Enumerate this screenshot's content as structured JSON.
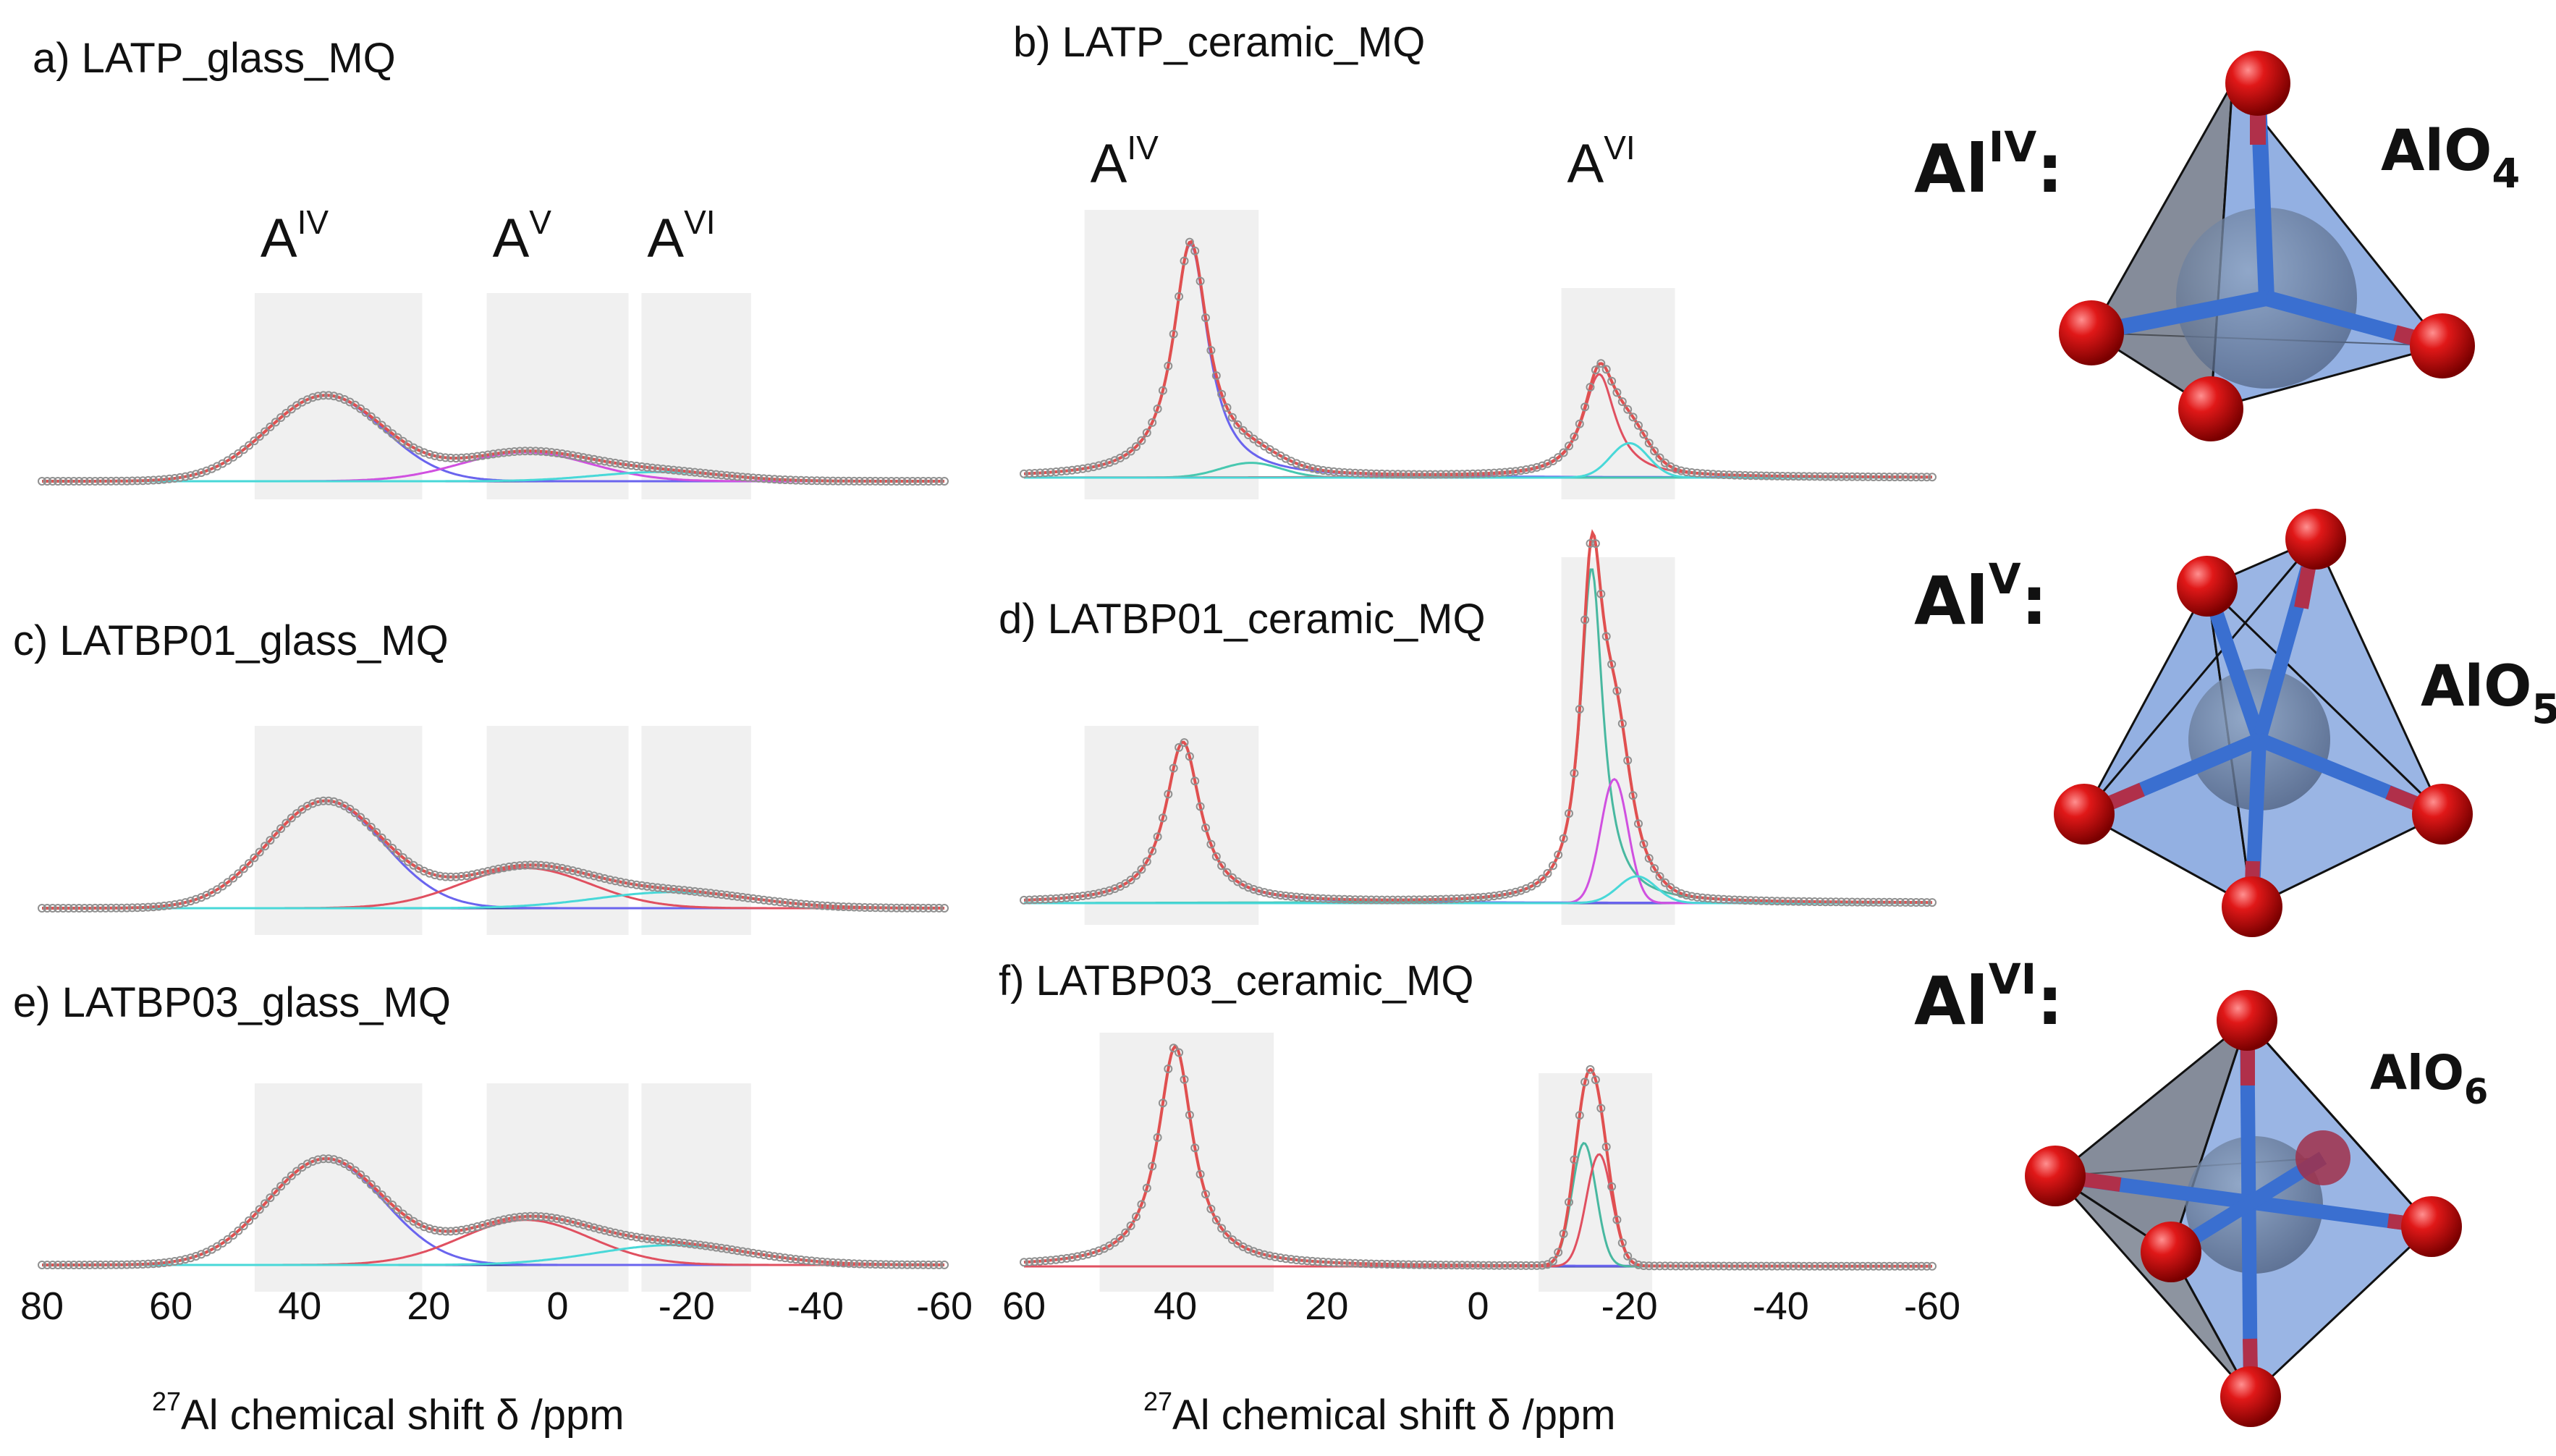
{
  "chart_data": [
    {
      "type": "line",
      "id": "a",
      "title": "a) LATP_glass_MQ",
      "x_range": [
        80,
        -60
      ],
      "regions": [
        [
          47,
          21
        ],
        [
          11,
          -11
        ],
        [
          -13,
          -30
        ]
      ],
      "region_labels": [
        {
          "base": "A",
          "sup": "IV"
        },
        {
          "base": "A",
          "sup": "V"
        },
        {
          "base": "A",
          "sup": "VI"
        }
      ],
      "components": [
        {
          "name": "AlIV",
          "color": "#6a64ee",
          "center": 36,
          "height": 0.74,
          "width": 9.0,
          "shape": "gauss"
        },
        {
          "name": "AlV",
          "color": "#d050e0",
          "center": 5,
          "height": 0.25,
          "width": 10.0,
          "shape": "gauss"
        },
        {
          "name": "AlVI",
          "color": "#48d8d8",
          "center": -16,
          "height": 0.08,
          "width": 10.0,
          "shape": "gauss"
        }
      ]
    },
    {
      "type": "line",
      "id": "c",
      "title": "c) LATBP01_glass_MQ",
      "x_range": [
        80,
        -60
      ],
      "regions": [
        [
          47,
          21
        ],
        [
          11,
          -11
        ],
        [
          -13,
          -30
        ]
      ],
      "region_labels": [],
      "components": [
        {
          "name": "AlIV",
          "color": "#6a64ee",
          "center": 36,
          "height": 0.8,
          "width": 9.0,
          "shape": "gauss"
        },
        {
          "name": "AlV",
          "color": "#e05060",
          "center": 5,
          "height": 0.3,
          "width": 10.0,
          "shape": "gauss"
        },
        {
          "name": "AlVI",
          "color": "#48d8d8",
          "center": -18,
          "height": 0.12,
          "width": 12.0,
          "shape": "gauss"
        }
      ]
    },
    {
      "type": "line",
      "id": "e",
      "title": "e) LATBP03_glass_MQ",
      "x_range": [
        80,
        -60
      ],
      "regions": [
        [
          47,
          21
        ],
        [
          11,
          -11
        ],
        [
          -13,
          -30
        ]
      ],
      "region_labels": [],
      "components": [
        {
          "name": "AlIV",
          "color": "#6a64ee",
          "center": 36,
          "height": 0.8,
          "width": 9.0,
          "shape": "gauss"
        },
        {
          "name": "AlV",
          "color": "#e05060",
          "center": 5,
          "height": 0.34,
          "width": 10.0,
          "shape": "gauss"
        },
        {
          "name": "AlVI",
          "color": "#48d8d8",
          "center": -18,
          "height": 0.15,
          "width": 12.0,
          "shape": "gauss"
        }
      ]
    },
    {
      "type": "line",
      "id": "b",
      "title": "b) LATP_ceramic_MQ",
      "x_range": [
        60,
        -60
      ],
      "regions": [
        [
          52,
          29
        ],
        [
          -11,
          -26
        ]
      ],
      "region_labels": [
        {
          "base": "A",
          "sup": "IV"
        },
        {
          "base": "A",
          "sup": "VI"
        }
      ],
      "components": [
        {
          "name": "AlIV",
          "color": "#6a64ee",
          "center": 38,
          "height": 0.95,
          "width": 2.8,
          "shape": "lorentz"
        },
        {
          "name": "AlIV-minor",
          "color": "#48c8b0",
          "center": 30,
          "height": 0.06,
          "width": 4.0,
          "shape": "gauss"
        },
        {
          "name": "AlVI-a",
          "color": "#e05060",
          "center": -16,
          "height": 0.42,
          "width": 2.6,
          "shape": "lorentz"
        },
        {
          "name": "AlVI-b",
          "color": "#48d8d8",
          "center": -20,
          "height": 0.14,
          "width": 2.5,
          "shape": "gauss"
        }
      ]
    },
    {
      "type": "line",
      "id": "d",
      "title": "d) LATBP01_ceramic_MQ",
      "x_range": [
        60,
        -60
      ],
      "regions": [
        [
          52,
          29
        ],
        [
          -11,
          -26
        ]
      ],
      "region_labels": [],
      "components": [
        {
          "name": "AlIV",
          "color": "#6a64ee",
          "center": 39,
          "height": 0.48,
          "width": 2.8,
          "shape": "lorentz"
        },
        {
          "name": "AlVI-a",
          "color": "#48b8a0",
          "center": -15,
          "height": 1.0,
          "width": 1.8,
          "shape": "lorentz"
        },
        {
          "name": "AlVI-b",
          "color": "#d050e0",
          "center": -18,
          "height": 0.37,
          "width": 1.8,
          "shape": "gauss"
        },
        {
          "name": "AlVI-c",
          "color": "#48d8d8",
          "center": -21,
          "height": 0.08,
          "width": 2.5,
          "shape": "gauss"
        }
      ]
    },
    {
      "type": "line",
      "id": "f",
      "title": "f) LATBP03_ceramic_MQ",
      "x_range": [
        60,
        -60
      ],
      "regions": [
        [
          50,
          27
        ],
        [
          -8,
          -23
        ]
      ],
      "region_labels": [],
      "components": [
        {
          "name": "AlIV",
          "color": "#6a64ee",
          "center": 40,
          "height": 0.98,
          "width": 2.8,
          "shape": "lorentz"
        },
        {
          "name": "AlVI-a",
          "color": "#48b8a0",
          "center": -14,
          "height": 0.55,
          "width": 1.6,
          "shape": "gauss"
        },
        {
          "name": "AlVI-b",
          "color": "#e05060",
          "center": -16,
          "height": 0.5,
          "width": 1.7,
          "shape": "gauss"
        }
      ]
    }
  ],
  "axes": {
    "glass": {
      "ticks": [
        80,
        60,
        40,
        20,
        0,
        -20,
        -40,
        -60
      ],
      "tick_labels": [
        "80",
        "60",
        "40",
        "20",
        "0",
        "-20",
        "-40",
        "-60"
      ]
    },
    "ceramic": {
      "ticks": [
        60,
        40,
        20,
        0,
        -20,
        -40,
        -60
      ],
      "tick_labels": [
        "60",
        "40",
        "20",
        "0",
        "-20",
        "-40",
        "-60"
      ]
    }
  },
  "xlabel": {
    "sup": "27",
    "text": "Al chemical shift δ /ppm"
  },
  "legend_colors": {
    "data_points": "#909090",
    "sum_fit": "#e05050",
    "region_shade": "#f0f0f0"
  },
  "structures": [
    {
      "label": {
        "base": "Al",
        "sup": "IV",
        "suffix": ":"
      },
      "formula": {
        "base": "AlO",
        "sub": "4"
      },
      "polyhedron": "tetrahedron"
    },
    {
      "label": {
        "base": "Al",
        "sup": "V",
        "suffix": ":"
      },
      "formula": {
        "base": "AlO",
        "sub": "5"
      },
      "polyhedron": "trigonal-bipyramid"
    },
    {
      "label": {
        "base": "Al",
        "sup": "VI",
        "suffix": ":"
      },
      "formula": {
        "base": "AlO",
        "sub": "6"
      },
      "polyhedron": "octahedron"
    }
  ]
}
